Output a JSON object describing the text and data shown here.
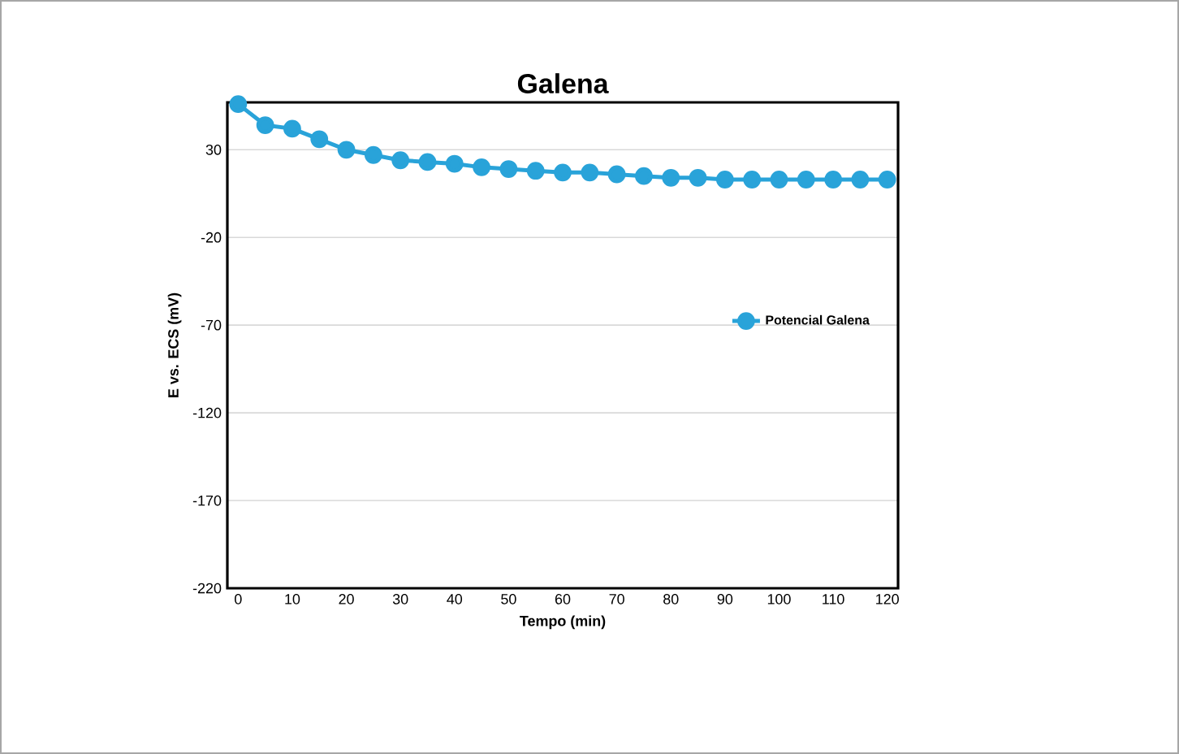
{
  "chart_data": {
    "type": "line",
    "title": "Galena",
    "xlabel": "Tempo (min)",
    "ylabel": "E vs. ECS (mV)",
    "x": [
      0,
      5,
      10,
      15,
      20,
      25,
      30,
      35,
      40,
      45,
      50,
      55,
      60,
      65,
      70,
      75,
      80,
      85,
      90,
      95,
      100,
      105,
      110,
      115,
      120
    ],
    "series": [
      {
        "name": "Potencial Galena",
        "color": "#29a3d9",
        "values": [
          56,
          44,
          42,
          36,
          30,
          27,
          24,
          23,
          22,
          20,
          19,
          18,
          17,
          17,
          16,
          15,
          14,
          14,
          13,
          13,
          13,
          13,
          13,
          13,
          13
        ]
      }
    ],
    "xlim": [
      -2,
      122
    ],
    "xticks": [
      0,
      10,
      20,
      30,
      40,
      50,
      60,
      70,
      80,
      90,
      100,
      110,
      120
    ],
    "ylim": [
      -220,
      57
    ],
    "yticks": [
      -220,
      -170,
      -120,
      -70,
      -20,
      30
    ],
    "grid": "y",
    "legend": "right",
    "marker": "circle",
    "line_style": "solid"
  }
}
